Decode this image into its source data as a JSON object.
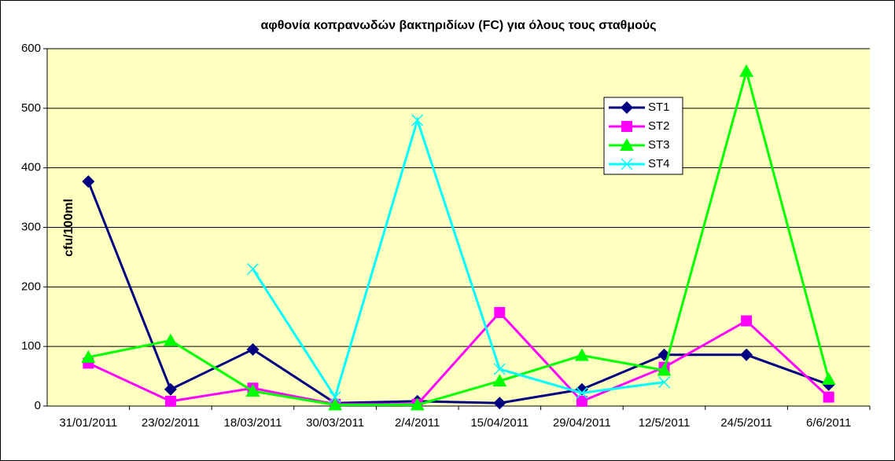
{
  "chart_data": {
    "type": "line",
    "title": "αφθονία κοπρανωδών βακτηριδίων (FC) για όλους τους σταθμούς",
    "y_label": "cfu/100ml",
    "categories": [
      "31/01/2011",
      "23/02/2011",
      "18/03/2011",
      "30/03/2011",
      "2/4/2011",
      "15/04/2011",
      "29/04/2011",
      "12/5/2011",
      "24/5/2011",
      "6/6/2011"
    ],
    "series": [
      {
        "name": "ST1",
        "color": "#000080",
        "marker": "diamond",
        "values": [
          377,
          28,
          95,
          5,
          8,
          5,
          28,
          86,
          86,
          36
        ]
      },
      {
        "name": "ST2",
        "color": "#ff00ff",
        "marker": "square",
        "values": [
          72,
          8,
          30,
          3,
          3,
          157,
          8,
          65,
          143,
          15
        ]
      },
      {
        "name": "ST3",
        "color": "#00ff00",
        "marker": "triangle",
        "values": [
          82,
          110,
          25,
          2,
          2,
          42,
          85,
          60,
          562,
          45
        ]
      },
      {
        "name": "ST4",
        "color": "#00ffff",
        "marker": "x",
        "values": [
          null,
          null,
          230,
          15,
          480,
          62,
          22,
          40,
          null,
          null
        ]
      }
    ],
    "ylim": [
      0,
      600
    ],
    "yticks": [
      0,
      100,
      200,
      300,
      400,
      500,
      600
    ],
    "grid": true,
    "legend": "upper right"
  }
}
